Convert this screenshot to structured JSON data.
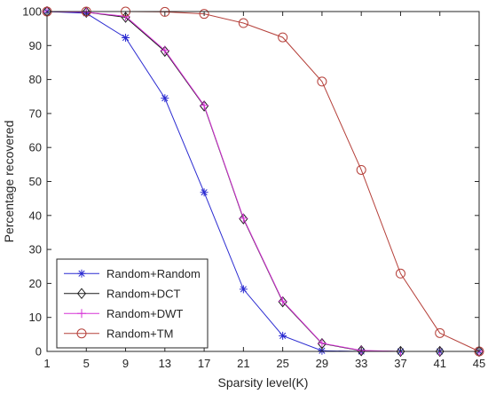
{
  "chart_data": {
    "type": "line",
    "title": "",
    "xlabel": "Sparsity level(K)",
    "ylabel": "Percentage recovered",
    "x": [
      1,
      5,
      9,
      13,
      17,
      21,
      25,
      29,
      33,
      37,
      41,
      45
    ],
    "xlim": [
      1,
      45
    ],
    "ylim": [
      0,
      100
    ],
    "xticks": [
      "1",
      "5",
      "9",
      "13",
      "17",
      "21",
      "25",
      "29",
      "33",
      "37",
      "41",
      "45"
    ],
    "yticks": [
      "0",
      "10",
      "20",
      "30",
      "40",
      "50",
      "60",
      "70",
      "80",
      "90",
      "100"
    ],
    "grid": false,
    "legend_position": "bottom-left",
    "series": [
      {
        "name": "Random+Random",
        "color": "#2b2bd1",
        "marker": "asterisk",
        "values": [
          100,
          99.5,
          92.3,
          74.5,
          46.8,
          18.3,
          4.6,
          0.2,
          0,
          0,
          0,
          0
        ]
      },
      {
        "name": "Random+DCT",
        "color": "#1a1a1a",
        "marker": "diamond",
        "values": [
          100,
          99.8,
          98.3,
          88.3,
          72.2,
          39.0,
          14.6,
          2.3,
          0.2,
          0,
          0,
          0
        ]
      },
      {
        "name": "Random+DWT",
        "color": "#d633d6",
        "marker": "plus",
        "values": [
          100,
          99.8,
          98.6,
          88.6,
          72.4,
          39.2,
          14.8,
          2.4,
          0.3,
          0,
          0,
          0
        ]
      },
      {
        "name": "Random+TM",
        "color": "#b5403a",
        "marker": "circle",
        "values": [
          100,
          100,
          100,
          99.9,
          99.3,
          96.6,
          92.4,
          79.4,
          53.4,
          22.9,
          5.4,
          0
        ]
      }
    ]
  }
}
